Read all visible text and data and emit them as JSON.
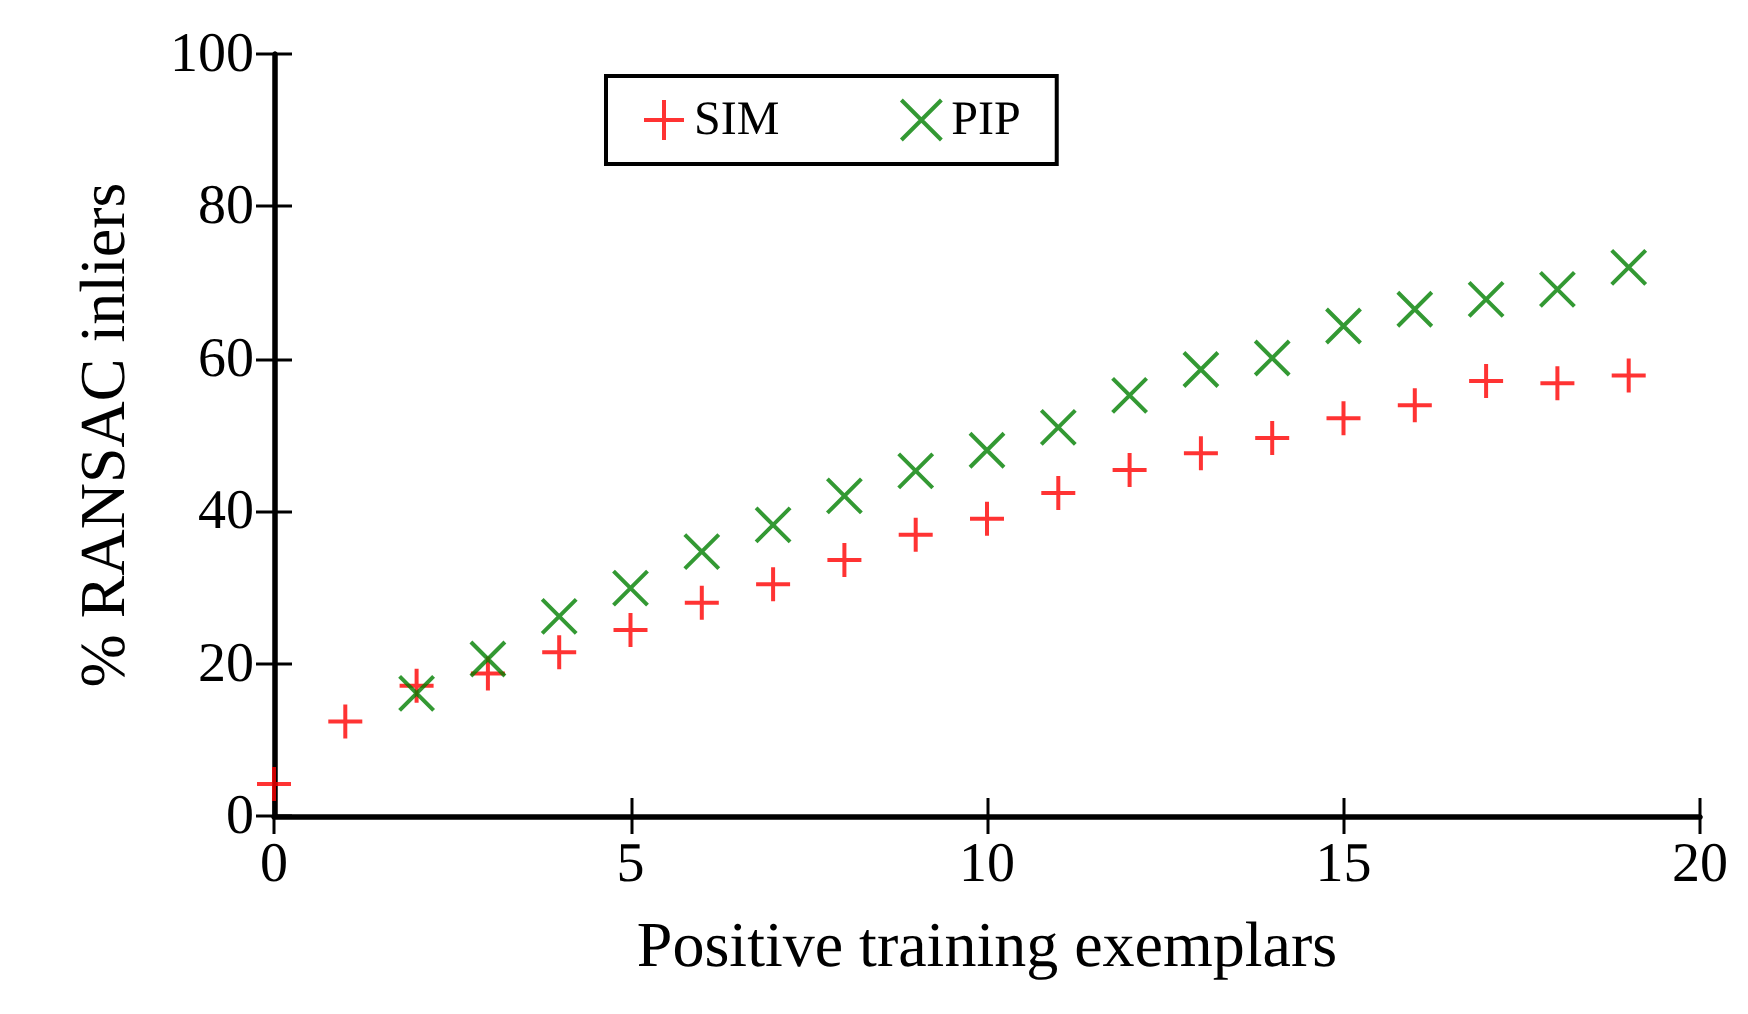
{
  "chart_data": {
    "type": "scatter",
    "xlabel": "Positive training exemplars",
    "ylabel": "% RANSAC inliers",
    "xlim": [
      0,
      20
    ],
    "xticks": [
      0,
      5,
      10,
      15,
      20
    ],
    "ylim": [
      0,
      100
    ],
    "yticks": [
      0,
      20,
      40,
      60,
      80,
      100
    ],
    "grid": false,
    "legend": "top",
    "series": [
      {
        "name": "SIM",
        "color": "#ff0000",
        "marker": "plus",
        "x": [
          0,
          1,
          2,
          3,
          4,
          5,
          6,
          7,
          8,
          9,
          10,
          11,
          12,
          13,
          14,
          15,
          16,
          17,
          18,
          19
        ],
        "values": [
          4.2,
          12.4,
          17.1,
          18.7,
          21.5,
          24.4,
          28,
          30.4,
          33.6,
          36.9,
          39,
          42.4,
          45.4,
          47.6,
          49.6,
          52.2,
          53.9,
          57.1,
          56.8,
          57.8
        ]
      },
      {
        "name": "PIP",
        "color": "#008000",
        "marker": "cross",
        "x": [
          2,
          3,
          4,
          5,
          6,
          7,
          8,
          9,
          10,
          11,
          12,
          13,
          14,
          15,
          16,
          17,
          18,
          19
        ],
        "values": [
          16.1,
          20.6,
          26.2,
          29.9,
          34.7,
          38.2,
          42,
          45.3,
          48,
          51,
          55.2,
          58.6,
          60.1,
          64.3,
          66.5,
          67.8,
          69.1,
          72
        ]
      }
    ]
  }
}
